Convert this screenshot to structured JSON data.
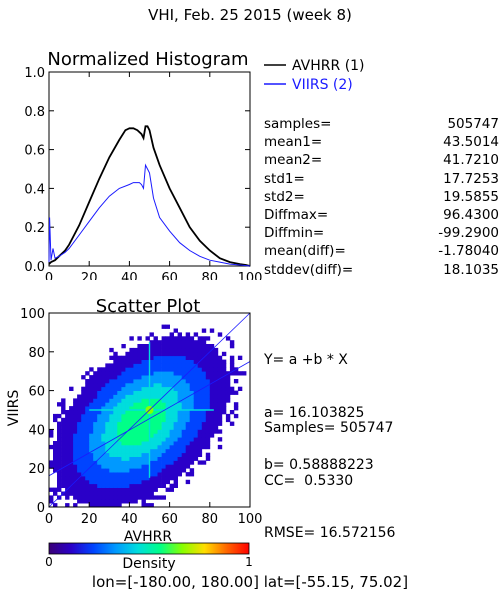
{
  "page_title": "VHI,  Feb. 25 2015 (week 8)",
  "footer_text": "lon=[-180.00, 180.00] lat=[-55.15, 75.02]",
  "histogram": {
    "title": "Normalized Histogram",
    "legend": [
      {
        "label": "AVHRR (1)",
        "color": "#000000"
      },
      {
        "label": "VIIRS (2)",
        "color": "#1a1aff"
      }
    ],
    "stats": [
      {
        "label": "samples=",
        "value": "505747"
      },
      {
        "label": "mean1=",
        "value": "43.5014"
      },
      {
        "label": "mean2=",
        "value": "41.7210"
      },
      {
        "label": "std1=",
        "value": "17.7253"
      },
      {
        "label": "std2=",
        "value": "19.5855"
      },
      {
        "label": "Diffmax=",
        "value": "96.4300"
      },
      {
        "label": "Diffmin=",
        "value": "-99.2900"
      },
      {
        "label": "mean(diff)=",
        "value": "-1.78040"
      },
      {
        "label": "stddev(diff)=",
        "value": "18.1035"
      }
    ]
  },
  "scatter": {
    "title": "Scatter Plot",
    "fit_lines": [
      "Y= a +b * X",
      "a= 16.103825",
      "b= 0.58888223"
    ],
    "stat_lines": [
      "Samples= 505747",
      "CC=  0.5330",
      "RMSE= 16.572156"
    ]
  },
  "colorbar": {
    "label": "Density",
    "ticks": [
      "0",
      "1"
    ],
    "colors": [
      "#3a0077",
      "#2a00c8",
      "#0044ff",
      "#0099ff",
      "#00dddd",
      "#00ff88",
      "#88ff00",
      "#ffdd00",
      "#ff6600",
      "#ff0000"
    ]
  },
  "chart_data": [
    {
      "type": "line",
      "title": "Normalized Histogram",
      "xlim": [
        0,
        100
      ],
      "ylim": [
        0,
        1.0
      ],
      "x_ticks": [
        "0",
        "20",
        "40",
        "60",
        "80",
        "100"
      ],
      "y_ticks": [
        "0.0",
        "0.2",
        "0.4",
        "0.6",
        "0.8",
        "1.0"
      ],
      "series": [
        {
          "name": "AVHRR (1)",
          "color": "#000000",
          "x": [
            0,
            1,
            3,
            5,
            8,
            10,
            15,
            20,
            25,
            30,
            35,
            38,
            40,
            42,
            44,
            46,
            47,
            48,
            49,
            50,
            52,
            55,
            60,
            65,
            70,
            75,
            80,
            85,
            90,
            95,
            98,
            100
          ],
          "y": [
            0.01,
            0.02,
            0.03,
            0.05,
            0.08,
            0.11,
            0.21,
            0.33,
            0.45,
            0.56,
            0.65,
            0.7,
            0.71,
            0.71,
            0.7,
            0.68,
            0.66,
            0.72,
            0.72,
            0.7,
            0.61,
            0.52,
            0.4,
            0.3,
            0.2,
            0.13,
            0.08,
            0.04,
            0.02,
            0.01,
            0.005,
            0.0
          ]
        },
        {
          "name": "VIIRS (2)",
          "color": "#1a1aff",
          "x": [
            0,
            0.3,
            1,
            2,
            3,
            5,
            8,
            10,
            15,
            20,
            25,
            30,
            35,
            40,
            42,
            45,
            46,
            47,
            48,
            49,
            50,
            52,
            55,
            60,
            65,
            70,
            75,
            80,
            85,
            90,
            95,
            100
          ],
          "y": [
            0.02,
            0.25,
            0.03,
            0.09,
            0.04,
            0.05,
            0.07,
            0.09,
            0.16,
            0.23,
            0.3,
            0.36,
            0.4,
            0.42,
            0.43,
            0.43,
            0.42,
            0.4,
            0.52,
            0.5,
            0.48,
            0.35,
            0.25,
            0.18,
            0.12,
            0.08,
            0.05,
            0.03,
            0.02,
            0.01,
            0.005,
            0.0
          ]
        }
      ]
    },
    {
      "type": "scatter",
      "title": "Scatter Plot",
      "xlabel": "AVHRR",
      "ylabel": "VIIRS",
      "xlim": [
        0,
        100
      ],
      "ylim": [
        0,
        100
      ],
      "x_ticks": [
        "0",
        "20",
        "40",
        "60",
        "80",
        "100"
      ],
      "y_ticks": [
        "0",
        "20",
        "40",
        "60",
        "80",
        "100"
      ],
      "n_samples": 505747,
      "density_center": [
        45,
        43
      ],
      "fit": {
        "a": 16.103825,
        "b": 0.58888223
      }
    }
  ]
}
